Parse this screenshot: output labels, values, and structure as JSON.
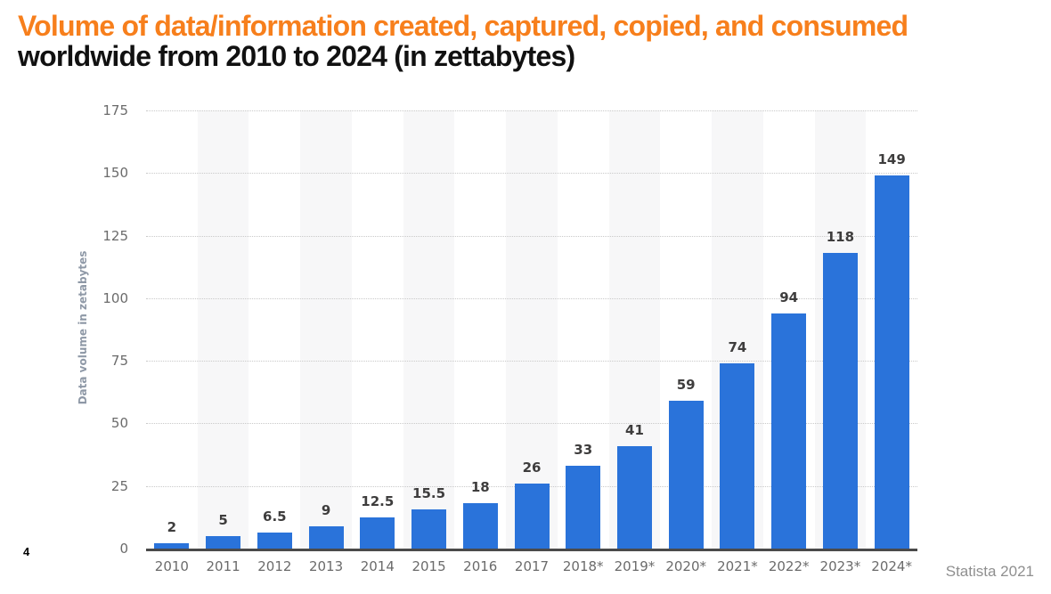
{
  "page": {
    "number": "4"
  },
  "title": {
    "line1": "Volume of data/information created, captured, copied, and consumed",
    "line2": "worldwide from 2010 to 2024 (in zettabytes)"
  },
  "footer": {
    "source": "Statista 2021"
  },
  "colors": {
    "title_orange": "#f77f1c",
    "title_black": "#111111",
    "bar_blue": "#2a73da",
    "band_gray": "#f7f7f8",
    "gridline_gray": "#c9c9c9",
    "axis_line": "#4a4a4a",
    "tick_gray": "#6b6b6b",
    "value_label": "#3e3d3d",
    "y_axis_title": "#8e98a6"
  },
  "chart_data": {
    "type": "bar",
    "title": "Volume of data/information created, captured, copied, and consumed worldwide from 2010 to 2024 (in zettabytes)",
    "categories": [
      "2010",
      "2011",
      "2012",
      "2013",
      "2014",
      "2015",
      "2016",
      "2017",
      "2018*",
      "2019*",
      "2020*",
      "2021*",
      "2022*",
      "2023*",
      "2024*"
    ],
    "values": [
      2,
      5,
      6.5,
      9,
      12.5,
      15.5,
      18,
      26,
      33,
      41,
      59,
      74,
      94,
      118,
      149
    ],
    "xlabel": "",
    "ylabel": "Data volume in zetabytes",
    "ylim": [
      0,
      175
    ],
    "yticks": [
      0,
      25,
      50,
      75,
      100,
      125,
      150,
      175
    ],
    "grid": "horizontal-dotted",
    "background_bands": "alternating-vertical",
    "legend": "none",
    "bar_color": "#2a73da",
    "band_color": "#f7f7f8"
  }
}
